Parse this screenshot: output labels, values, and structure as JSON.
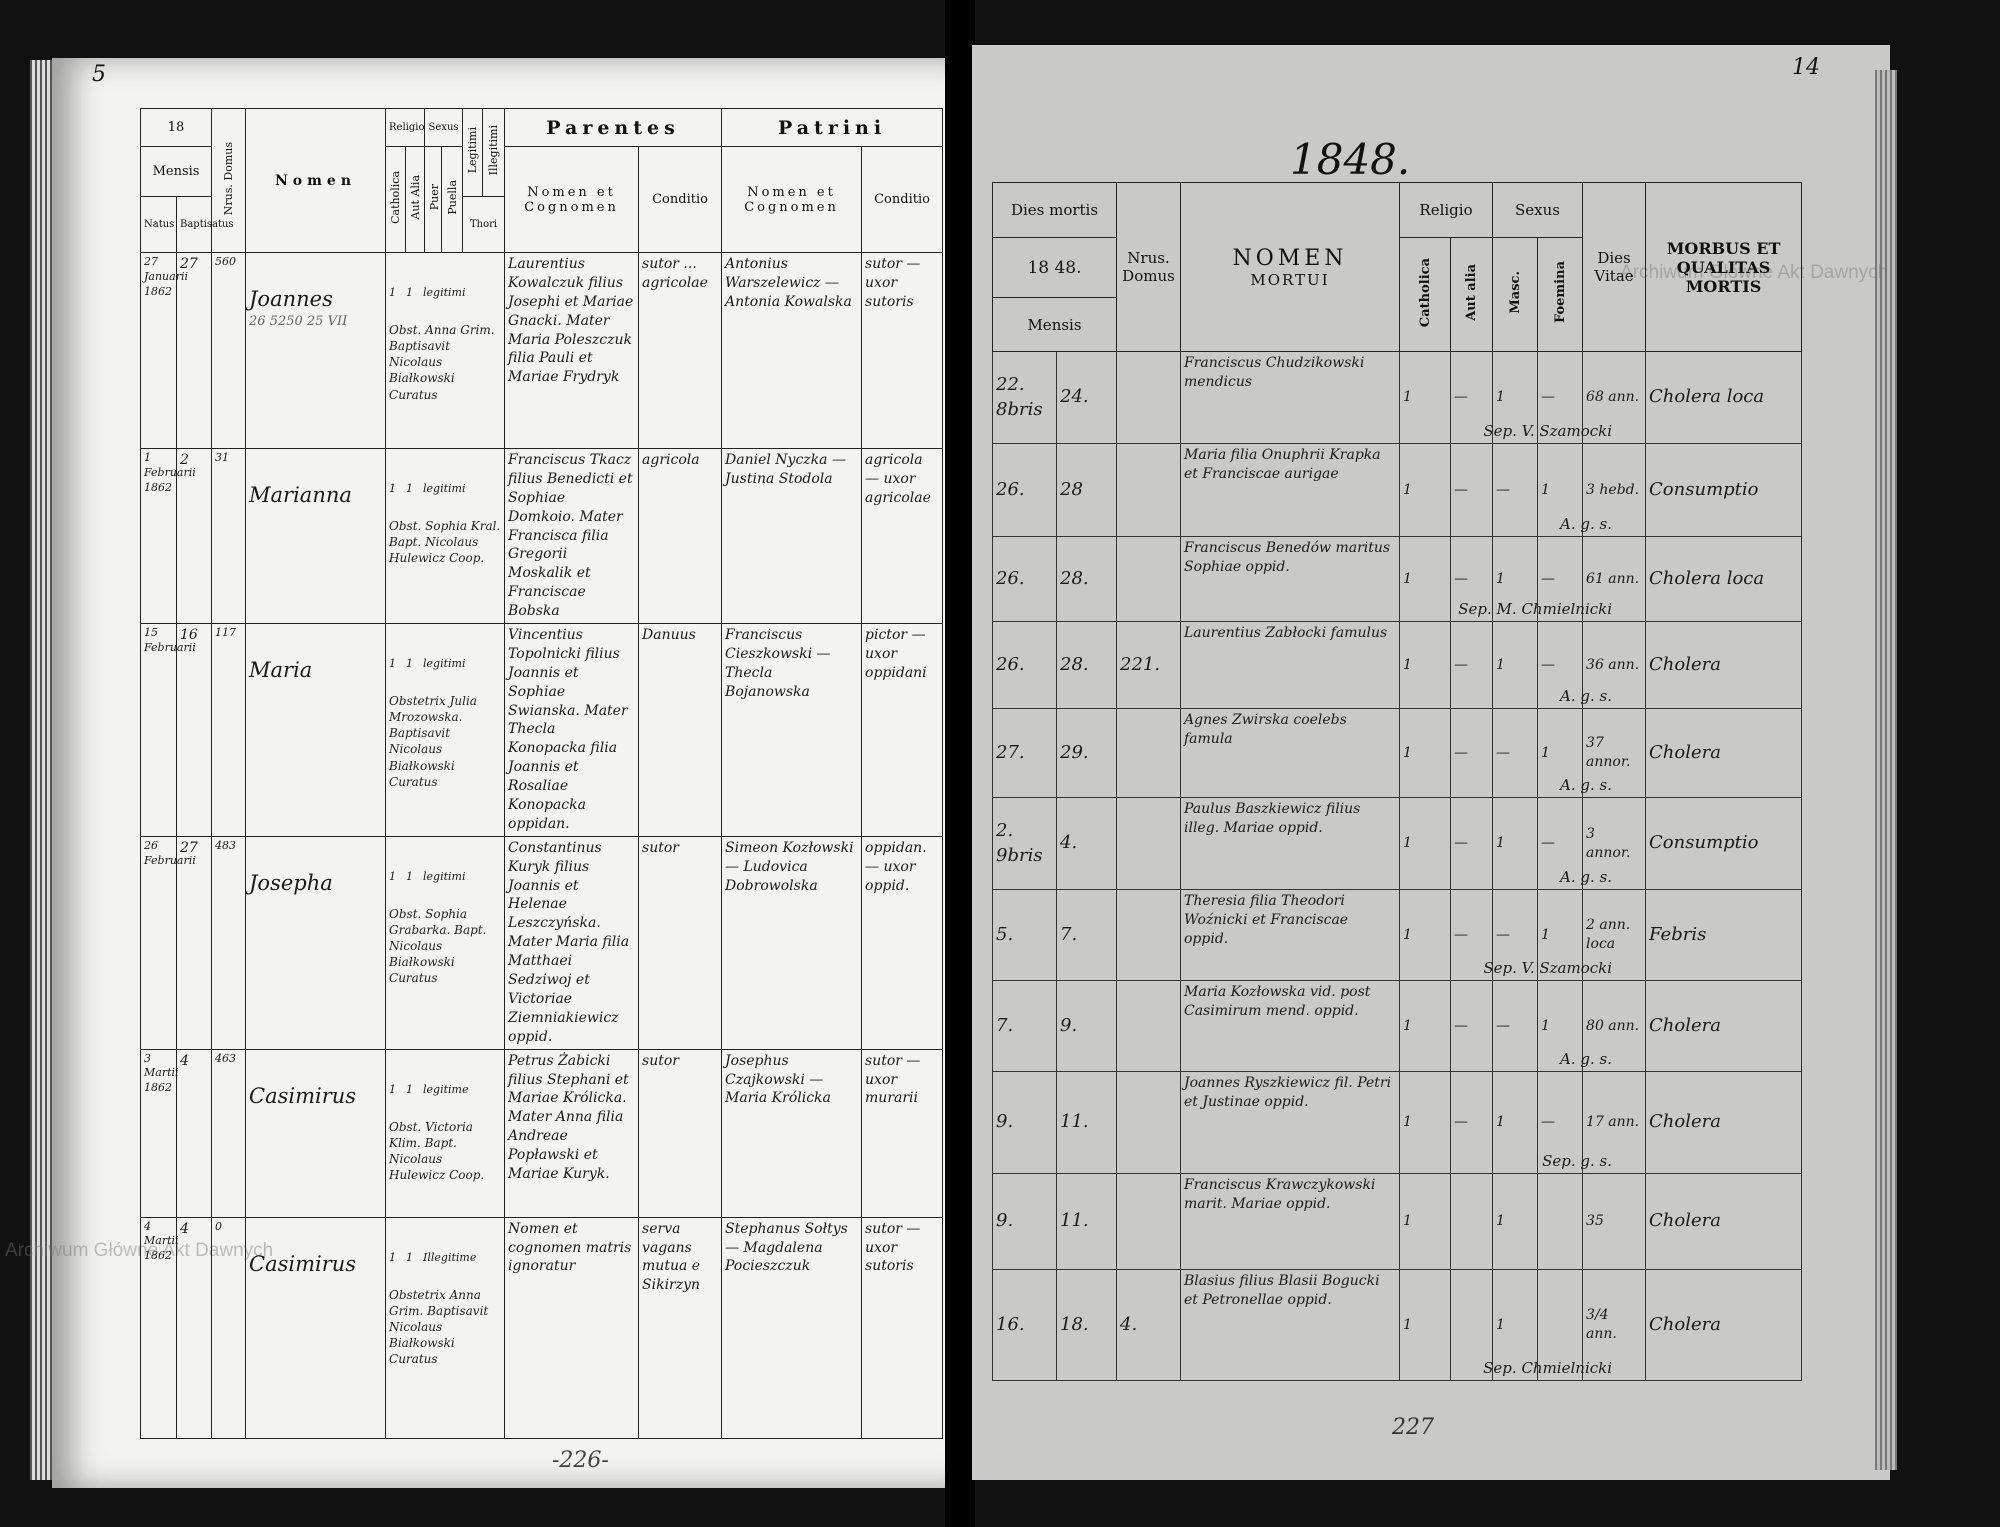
{
  "left_page": {
    "corner_mark": "5",
    "page_number": "-226-",
    "header": {
      "year_prefix": "18",
      "mensis": "Mensis",
      "natus": "Natus",
      "baptisatus": "Baptisatus",
      "nrus_domus": "Nrus. Domus",
      "nomen": "Nomen",
      "religio": "Religio",
      "catholica": "Catholica",
      "aut_alia": "Aut Alia",
      "sexus": "Sexus",
      "puer": "Puer",
      "puella": "Puella",
      "legitimi": "Legitimi",
      "illegitimi": "Illegitimi",
      "thori": "Thori",
      "parentes": "Parentes",
      "patrini": "Patrini",
      "nomen_et_cognomen": "Nomen et Cognomen",
      "conditio": "Conditio"
    },
    "rows": [
      {
        "natus": "27 Januarii 1862",
        "baptisatus": "27",
        "domus": "560",
        "nomen": "Joannes",
        "pencil": "26 5250  25 VII",
        "catholica": "1",
        "puer": "1",
        "legitimi": "legitimi",
        "obstetrix": "Obst. Anna Grim. Baptisavit Nicolaus Białkowski Curatus",
        "parentes": "Laurentius Kowalczuk filius Josephi et Mariae Gnacki. Mater Maria Poleszczuk filia Pauli et Mariae Frydryk",
        "parentes_conditio": "sutor ... agricolae",
        "patrini": "Antonius Warszelewicz — Antonia Kowalska",
        "patrini_conditio": "sutor — uxor sutoris"
      },
      {
        "natus": "1 Februarii 1862",
        "baptisatus": "2",
        "domus": "31",
        "nomen": "Marianna",
        "pencil": "",
        "catholica": "1",
        "puer": "1",
        "legitimi": "legitimi",
        "obstetrix": "Obst. Sophia Kral. Bapt. Nicolaus Hulewicz Coop.",
        "parentes": "Franciscus Tkacz filius Benedicti et Sophiae Domkoio. Mater Francisca filia Gregorii Moskalik et Franciscae Bobska",
        "parentes_conditio": "agricola",
        "patrini": "Daniel Nyczka — Justina Stodola",
        "patrini_conditio": "agricola — uxor agricolae"
      },
      {
        "natus": "15 Februarii",
        "baptisatus": "16",
        "domus": "117",
        "nomen": "Maria",
        "pencil": "",
        "catholica": "1",
        "puer": "1",
        "legitimi": "legitimi",
        "obstetrix": "Obstetrix Julia Mrozowska. Baptisavit Nicolaus Białkowski Curatus",
        "parentes": "Vincentius Topolnicki filius Joannis et Sophiae Swianska. Mater Thecla Konopacka filia Joannis et Rosaliae Konopacka oppidan.",
        "parentes_conditio": "Danuus",
        "patrini": "Franciscus Cieszkowski — Thecla Bojanowska",
        "patrini_conditio": "pictor — uxor oppidani"
      },
      {
        "natus": "26 Februarii",
        "baptisatus": "27",
        "domus": "483",
        "nomen": "Josepha",
        "pencil": "",
        "catholica": "1",
        "puer": "1",
        "legitimi": "legitimi",
        "obstetrix": "Obst. Sophia Grabarka. Bapt. Nicolaus Białkowski Curatus",
        "parentes": "Constantinus Kuryk filius Joannis et Helenae Leszczyńska. Mater Maria filia Matthaei Sedziwoj et Victoriae Ziemniakiewicz oppid.",
        "parentes_conditio": "sutor",
        "patrini": "Simeon Kozłowski — Ludovica Dobrowolska",
        "patrini_conditio": "oppidan. — uxor oppid."
      },
      {
        "natus": "3 Martii 1862",
        "baptisatus": "4",
        "domus": "463",
        "nomen": "Casimirus",
        "pencil": "",
        "catholica": "1",
        "puer": "1",
        "legitimi": "legitime",
        "obstetrix": "Obst. Victoria Klim. Bapt. Nicolaus Hulewicz Coop.",
        "parentes": "Petrus Żabicki filius Stephani et Mariae Królicka. Mater Anna filia Andreae Popławski et Mariae Kuryk.",
        "parentes_conditio": "sutor",
        "patrini": "Josephus Czajkowski — Maria Królicka",
        "patrini_conditio": "sutor — uxor murarii"
      },
      {
        "natus": "4 Martii 1862",
        "baptisatus": "4",
        "domus": "0",
        "nomen": "Casimirus",
        "pencil": "",
        "catholica": "1",
        "puer": "1",
        "legitimi": "Illegitime",
        "obstetrix": "Obstetrix Anna Grim. Baptisavit Nicolaus Białkowski Curatus",
        "parentes": "Nomen et cognomen matris ignoratur",
        "parentes_conditio": "serva vagans mutua e Sikirzyn",
        "patrini": "Stephanus Sołtys — Magdalena Pocieszczuk",
        "patrini_conditio": "sutor — uxor sutoris"
      }
    ]
  },
  "right_page": {
    "corner_mark": "14",
    "year_heading": "1848.",
    "page_number": "227",
    "watermark": "Archiwum Główne Akt Dawnych",
    "header": {
      "dies_mortis": "Dies mortis",
      "year": "18 48.",
      "mensis": "Mensis",
      "nrus_domus": "Nrus. Domus",
      "nomen": "NOMEN",
      "mortui": "MORTUI",
      "religio": "Religio",
      "catholica": "Catholica",
      "aut_alia": "Aut alia",
      "sexus": "Sexus",
      "masc": "Masc.",
      "foemina": "Foemina",
      "dies_vitae": "Dies Vitae",
      "morbus": "MORBUS ET QUALITAS MORTIS"
    },
    "rows": [
      {
        "dies": "22. 8bris",
        "mensis": "24.",
        "domus": "",
        "nomen": "Franciscus Chudzikowski mendicus",
        "cath": "1",
        "alia": "—",
        "masc": "1",
        "foem": "—",
        "vitae": "68 ann.",
        "morbus": "Cholera loca",
        "sepultura": "Sep. V. Szamocki"
      },
      {
        "dies": "26.",
        "mensis": "28",
        "domus": "",
        "nomen": "Maria filia Onuphrii Krapka et Franciscae aurigae",
        "cath": "1",
        "alia": "—",
        "masc": "—",
        "foem": "1",
        "vitae": "3 hebd.",
        "morbus": "Consumptio",
        "sepultura": "A. g. s."
      },
      {
        "dies": "26.",
        "mensis": "28.",
        "domus": "",
        "nomen": "Franciscus Benedów maritus Sophiae oppid.",
        "cath": "1",
        "alia": "—",
        "masc": "1",
        "foem": "—",
        "vitae": "61 ann.",
        "morbus": "Cholera loca",
        "sepultura": "Sep. M. Chmielnicki"
      },
      {
        "dies": "26.",
        "mensis": "28.",
        "domus": "221.",
        "nomen": "Laurentius Zabłocki famulus",
        "cath": "1",
        "alia": "—",
        "masc": "1",
        "foem": "—",
        "vitae": "36 ann.",
        "morbus": "Cholera",
        "sepultura": "A. g. s."
      },
      {
        "dies": "27.",
        "mensis": "29.",
        "domus": "",
        "nomen": "Agnes Zwirska coelebs famula",
        "cath": "1",
        "alia": "—",
        "masc": "—",
        "foem": "1",
        "vitae": "37 annor.",
        "morbus": "Cholera",
        "sepultura": "A. g. s."
      },
      {
        "dies": "2. 9bris",
        "mensis": "4.",
        "domus": "",
        "nomen": "Paulus Baszkiewicz filius illeg. Mariae oppid.",
        "cath": "1",
        "alia": "—",
        "masc": "1",
        "foem": "—",
        "vitae": "3 annor.",
        "morbus": "Consumptio",
        "sepultura": "A. g. s."
      },
      {
        "dies": "5.",
        "mensis": "7.",
        "domus": "",
        "nomen": "Theresia filia Theodori Woźnicki et Franciscae oppid.",
        "cath": "1",
        "alia": "—",
        "masc": "—",
        "foem": "1",
        "vitae": "2 ann. loca",
        "morbus": "Febris",
        "sepultura": "Sep. V. Szamocki"
      },
      {
        "dies": "7.",
        "mensis": "9.",
        "domus": "",
        "nomen": "Maria Kozłowska vid. post Casimirum mend. oppid.",
        "cath": "1",
        "alia": "—",
        "masc": "—",
        "foem": "1",
        "vitae": "80 ann.",
        "morbus": "Cholera",
        "sepultura": "A. g. s."
      },
      {
        "dies": "9.",
        "mensis": "11.",
        "domus": "",
        "nomen": "Joannes Ryszkiewicz fil. Petri et Justinae oppid.",
        "cath": "1",
        "alia": "—",
        "masc": "1",
        "foem": "—",
        "vitae": "17 ann.",
        "morbus": "Cholera",
        "sepultura": "Sep. g. s."
      },
      {
        "dies": "9.",
        "mensis": "11.",
        "domus": "",
        "nomen": "Franciscus Krawczykowski marit. Mariae oppid.",
        "cath": "1",
        "alia": "",
        "masc": "1",
        "foem": "",
        "vitae": "35",
        "morbus": "Cholera",
        "sepultura": ""
      },
      {
        "dies": "16.",
        "mensis": "18.",
        "domus": "4.",
        "nomen": "Blasius filius Blasii Bogucki et Petronellae oppid.",
        "cath": "1",
        "alia": "",
        "masc": "1",
        "foem": "",
        "vitae": "3/4 ann.",
        "morbus": "Cholera",
        "sepultura": "Sep. Chmielnicki"
      }
    ]
  }
}
